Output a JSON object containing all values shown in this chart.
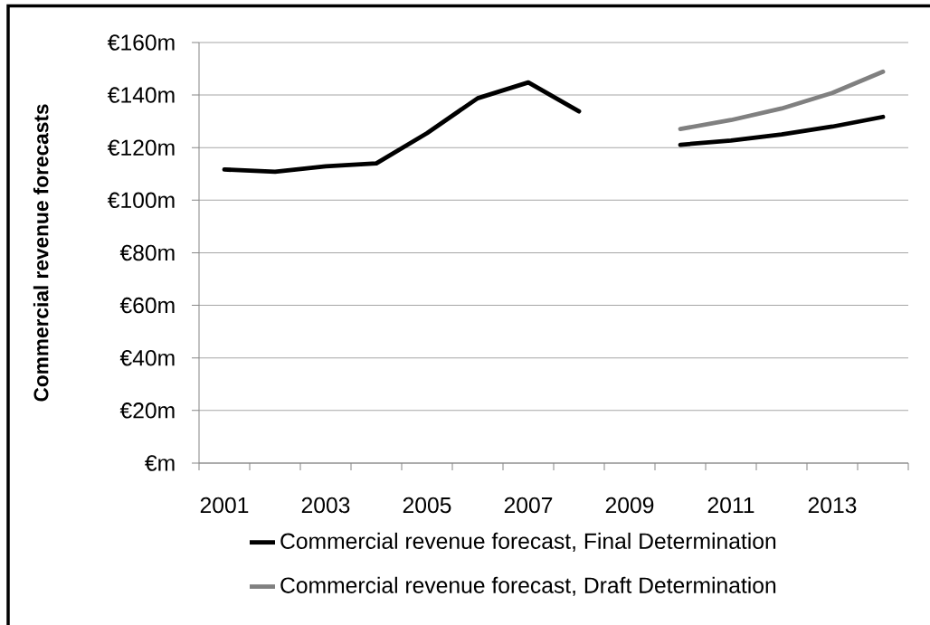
{
  "chart_data": {
    "type": "line",
    "ylabel": "Commercial revenue forecasts",
    "categories": [
      "2001",
      null,
      "2003",
      null,
      "2005",
      null,
      "2007",
      null,
      "2009",
      null,
      "2011",
      null,
      "2013",
      null
    ],
    "series": [
      {
        "name": "Commercial revenue forecast, Final Determination",
        "color": "#000000",
        "values": [
          111.7,
          110.8,
          112.9,
          114.0,
          125.5,
          138.8,
          144.8,
          133.8,
          null,
          121.1,
          122.7,
          125.0,
          128.0,
          131.7
        ]
      },
      {
        "name": "Commercial revenue forecast, Draft Determination",
        "color": "#808080",
        "values": [
          null,
          null,
          null,
          null,
          null,
          null,
          null,
          null,
          null,
          127.1,
          130.5,
          134.9,
          140.8,
          148.9
        ]
      }
    ],
    "ylim": [
      0,
      160
    ],
    "yticks": [
      {
        "value": 0,
        "label": "€m"
      },
      {
        "value": 20,
        "label": "€20m"
      },
      {
        "value": 40,
        "label": "€40m"
      },
      {
        "value": 60,
        "label": "€60m"
      },
      {
        "value": 80,
        "label": "€80m"
      },
      {
        "value": 100,
        "label": "€100m"
      },
      {
        "value": 120,
        "label": "€120m"
      },
      {
        "value": 140,
        "label": "€140m"
      },
      {
        "value": 160,
        "label": "€160m"
      }
    ],
    "grid": "y",
    "legend": "bottom"
  }
}
